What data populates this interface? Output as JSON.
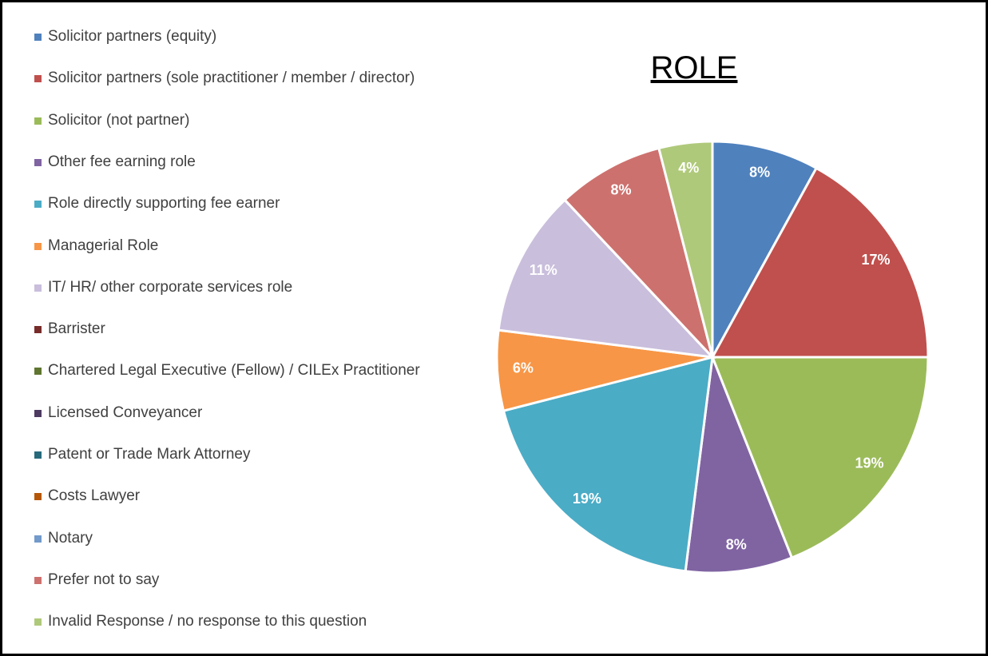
{
  "chart_data": {
    "type": "pie",
    "title": "ROLE",
    "categories": [
      "Solicitor partners (equity)",
      "Solicitor partners (sole practitioner / member / director)",
      "Solicitor (not partner)",
      "Other fee earning role",
      "Role directly supporting fee earner",
      "Managerial Role",
      "IT/ HR/ other corporate services role",
      "Barrister",
      "Chartered Legal Executive (Fellow) / CILEx Practitioner",
      "Licensed Conveyancer",
      "Patent or Trade Mark Attorney",
      "Costs Lawyer",
      "Notary",
      "Prefer not to say",
      "Invalid Response / no response to this question"
    ],
    "values": [
      8,
      17,
      19,
      8,
      19,
      6,
      11,
      0,
      0,
      0,
      0,
      0,
      0,
      8,
      4
    ],
    "value_labels": [
      "8%",
      "17%",
      "19%",
      "8%",
      "19%",
      "6%",
      "11%",
      null,
      null,
      null,
      null,
      null,
      null,
      "8%",
      "4%"
    ],
    "colors": [
      "#4f81bd",
      "#c0504d",
      "#9bbb59",
      "#8064a2",
      "#4bacc6",
      "#f79646",
      "#c9bedc",
      "#772c2a",
      "#5f7530",
      "#4d3b62",
      "#276a7c",
      "#b65708",
      "#729aca",
      "#cd716e",
      "#afc97a"
    ],
    "legend": "left"
  }
}
